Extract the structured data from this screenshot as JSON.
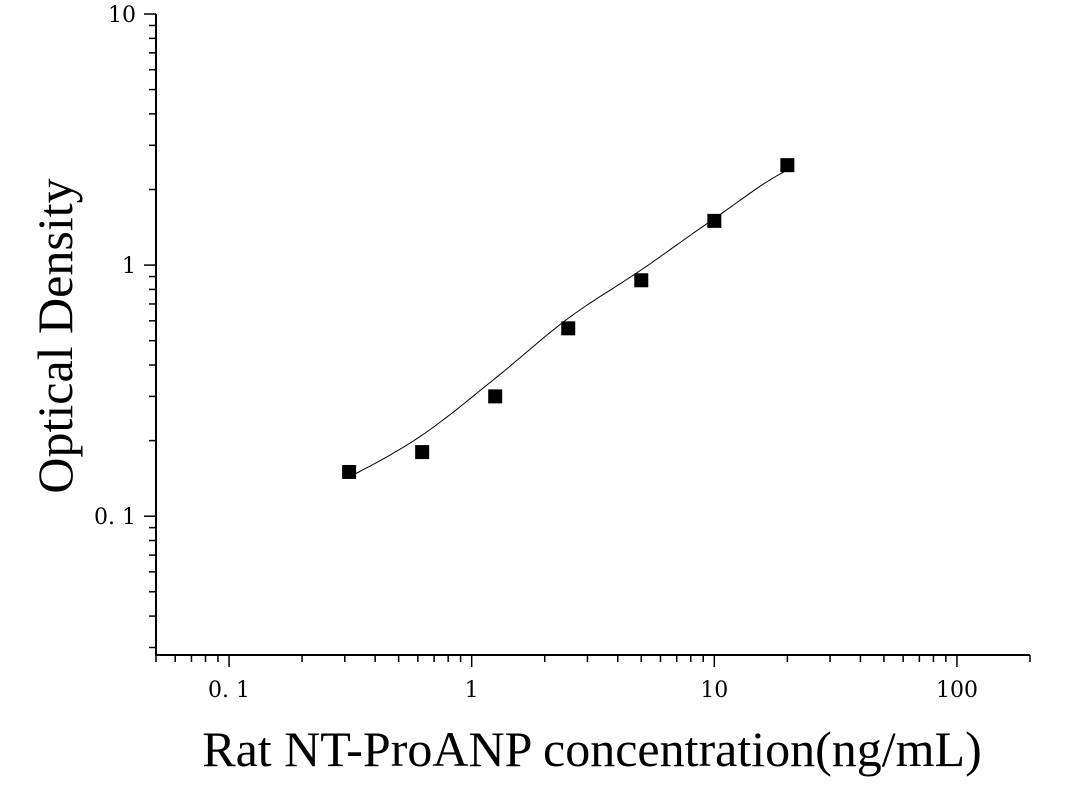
{
  "chart_data": {
    "type": "scatter",
    "title": "",
    "xlabel": "Rat NT-ProANP concentration(ng/mL)",
    "ylabel": "Optical Density",
    "x_scale": "log",
    "y_scale": "log",
    "xlim": [
      0.05,
      200
    ],
    "ylim": [
      0.028,
      10
    ],
    "x_ticks": [
      {
        "value": 0.1,
        "label": "0. 1"
      },
      {
        "value": 1,
        "label": "1"
      },
      {
        "value": 10,
        "label": "10"
      },
      {
        "value": 100,
        "label": "100"
      }
    ],
    "y_ticks": [
      {
        "value": 0.1,
        "label": "0. 1"
      },
      {
        "value": 1,
        "label": "1"
      },
      {
        "value": 10,
        "label": "10"
      }
    ],
    "grid": false,
    "legend": "none",
    "series": [
      {
        "marker": "square",
        "color": "#000000",
        "x": [
          0.3125,
          0.625,
          1.25,
          2.5,
          5,
          10,
          20
        ],
        "y": [
          0.15,
          0.18,
          0.3,
          0.56,
          0.87,
          1.5,
          2.5
        ]
      }
    ],
    "fit_curve": {
      "color": "#000000",
      "x_range": [
        0.32,
        19.5
      ]
    }
  }
}
